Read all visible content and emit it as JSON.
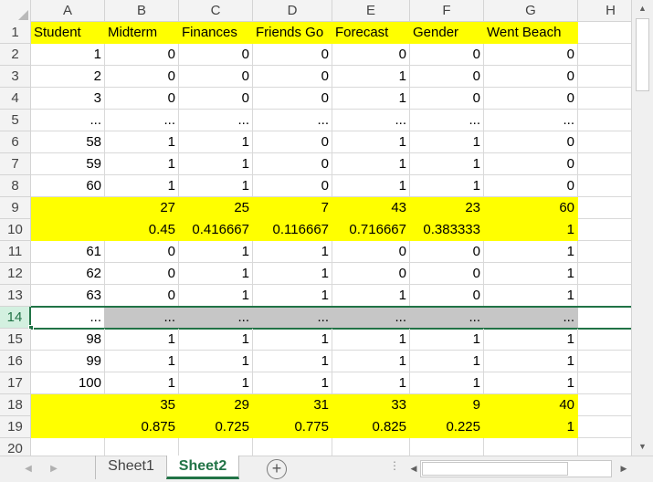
{
  "columns": [
    "A",
    "B",
    "C",
    "D",
    "E",
    "F",
    "G",
    "H"
  ],
  "rows": [
    {
      "num": "1",
      "style": "hl",
      "cells": [
        "Student",
        "Midterm",
        "Finances",
        "Friends Go",
        "Forecast",
        "Gender",
        "Went Beach",
        ""
      ]
    },
    {
      "num": "2",
      "style": "",
      "cells": [
        "1",
        "0",
        "0",
        "0",
        "0",
        "0",
        "0",
        ""
      ]
    },
    {
      "num": "3",
      "style": "",
      "cells": [
        "2",
        "0",
        "0",
        "0",
        "1",
        "0",
        "0",
        ""
      ]
    },
    {
      "num": "4",
      "style": "",
      "cells": [
        "3",
        "0",
        "0",
        "0",
        "1",
        "0",
        "0",
        ""
      ]
    },
    {
      "num": "5",
      "style": "",
      "cells": [
        "...",
        "...",
        "...",
        "...",
        "...",
        "...",
        "...",
        ""
      ]
    },
    {
      "num": "6",
      "style": "",
      "cells": [
        "58",
        "1",
        "1",
        "0",
        "1",
        "1",
        "0",
        ""
      ]
    },
    {
      "num": "7",
      "style": "",
      "cells": [
        "59",
        "1",
        "1",
        "0",
        "1",
        "1",
        "0",
        ""
      ]
    },
    {
      "num": "8",
      "style": "",
      "cells": [
        "60",
        "1",
        "1",
        "0",
        "1",
        "1",
        "0",
        ""
      ]
    },
    {
      "num": "9",
      "style": "hl",
      "cells": [
        "",
        "27",
        "25",
        "7",
        "43",
        "23",
        "60",
        ""
      ]
    },
    {
      "num": "10",
      "style": "hl",
      "cells": [
        "",
        "0.45",
        "0.416667",
        "0.116667",
        "0.716667",
        "0.383333",
        "1",
        ""
      ]
    },
    {
      "num": "11",
      "style": "",
      "cells": [
        "61",
        "0",
        "1",
        "1",
        "0",
        "0",
        "1",
        ""
      ]
    },
    {
      "num": "12",
      "style": "",
      "cells": [
        "62",
        "0",
        "1",
        "1",
        "0",
        "0",
        "1",
        ""
      ]
    },
    {
      "num": "13",
      "style": "",
      "cells": [
        "63",
        "0",
        "1",
        "1",
        "1",
        "0",
        "1",
        ""
      ]
    },
    {
      "num": "14",
      "style": "gray",
      "cells": [
        "...",
        "...",
        "...",
        "...",
        "...",
        "...",
        "...",
        ""
      ]
    },
    {
      "num": "15",
      "style": "",
      "cells": [
        "98",
        "1",
        "1",
        "1",
        "1",
        "1",
        "1",
        ""
      ]
    },
    {
      "num": "16",
      "style": "",
      "cells": [
        "99",
        "1",
        "1",
        "1",
        "1",
        "1",
        "1",
        ""
      ]
    },
    {
      "num": "17",
      "style": "",
      "cells": [
        "100",
        "1",
        "1",
        "1",
        "1",
        "1",
        "1",
        ""
      ]
    },
    {
      "num": "18",
      "style": "hl",
      "cells": [
        "",
        "35",
        "29",
        "31",
        "33",
        "9",
        "40",
        ""
      ]
    },
    {
      "num": "19",
      "style": "hl",
      "cells": [
        "",
        "0.875",
        "0.725",
        "0.775",
        "0.825",
        "0.225",
        "1",
        ""
      ]
    },
    {
      "num": "20",
      "style": "",
      "cells": [
        "",
        "",
        "",
        "",
        "",
        "",
        "",
        ""
      ]
    }
  ],
  "selected_row": "14",
  "tabs": [
    {
      "label": "Sheet1",
      "active": false
    },
    {
      "label": "Sheet2",
      "active": true
    }
  ],
  "tab_dots": "⋮",
  "accent_color": "#217346",
  "highlight_color": "#ffff00",
  "icons": {
    "corner": "select-all-triangle",
    "add_sheet": "plus-circle-icon"
  }
}
